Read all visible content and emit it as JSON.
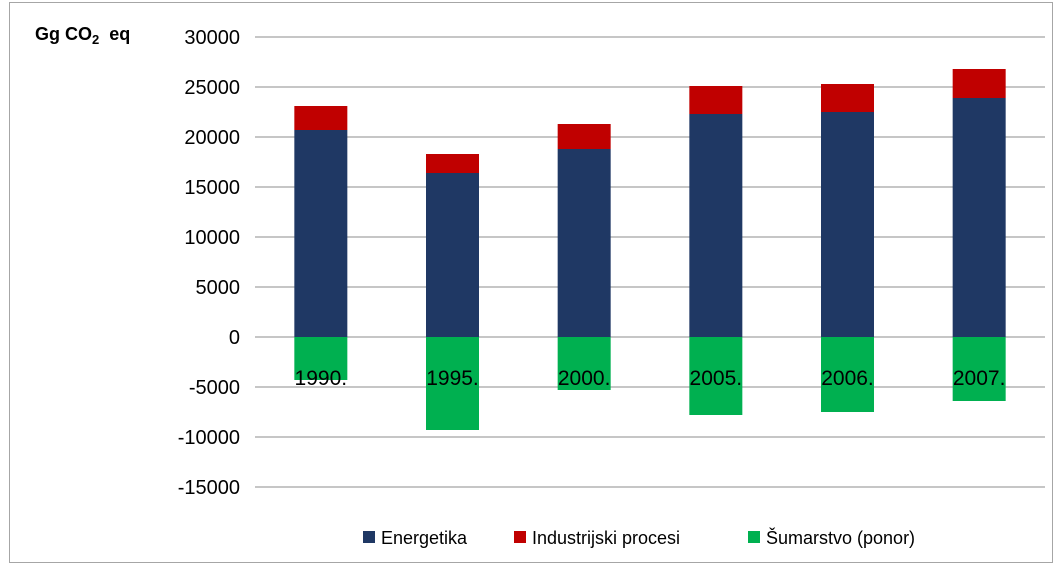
{
  "chart_data": {
    "type": "bar",
    "stacked": true,
    "ylabel_parts": [
      "Gg CO",
      "2",
      "  eq"
    ],
    "categories": [
      "1990.",
      "1995.",
      "2000.",
      "2005.",
      "2006.",
      "2007."
    ],
    "series": [
      {
        "name": "Energetika",
        "color": "#1f3864",
        "values": [
          20700,
          16400,
          18800,
          22300,
          22500,
          23900
        ]
      },
      {
        "name": "Industrijski procesi",
        "color": "#c00000",
        "values": [
          2400,
          1900,
          2500,
          2800,
          2800,
          2900
        ]
      },
      {
        "name": "Šumarstvo (ponor)",
        "color": "#00b050",
        "values": [
          -4300,
          -9300,
          -5300,
          -7800,
          -7500,
          -6400
        ]
      }
    ],
    "ylim": [
      -15000,
      30000
    ],
    "yticks": [
      30000,
      25000,
      20000,
      15000,
      10000,
      5000,
      0,
      -5000,
      -10000,
      -15000
    ],
    "grid": true,
    "legend_position": "bottom"
  }
}
